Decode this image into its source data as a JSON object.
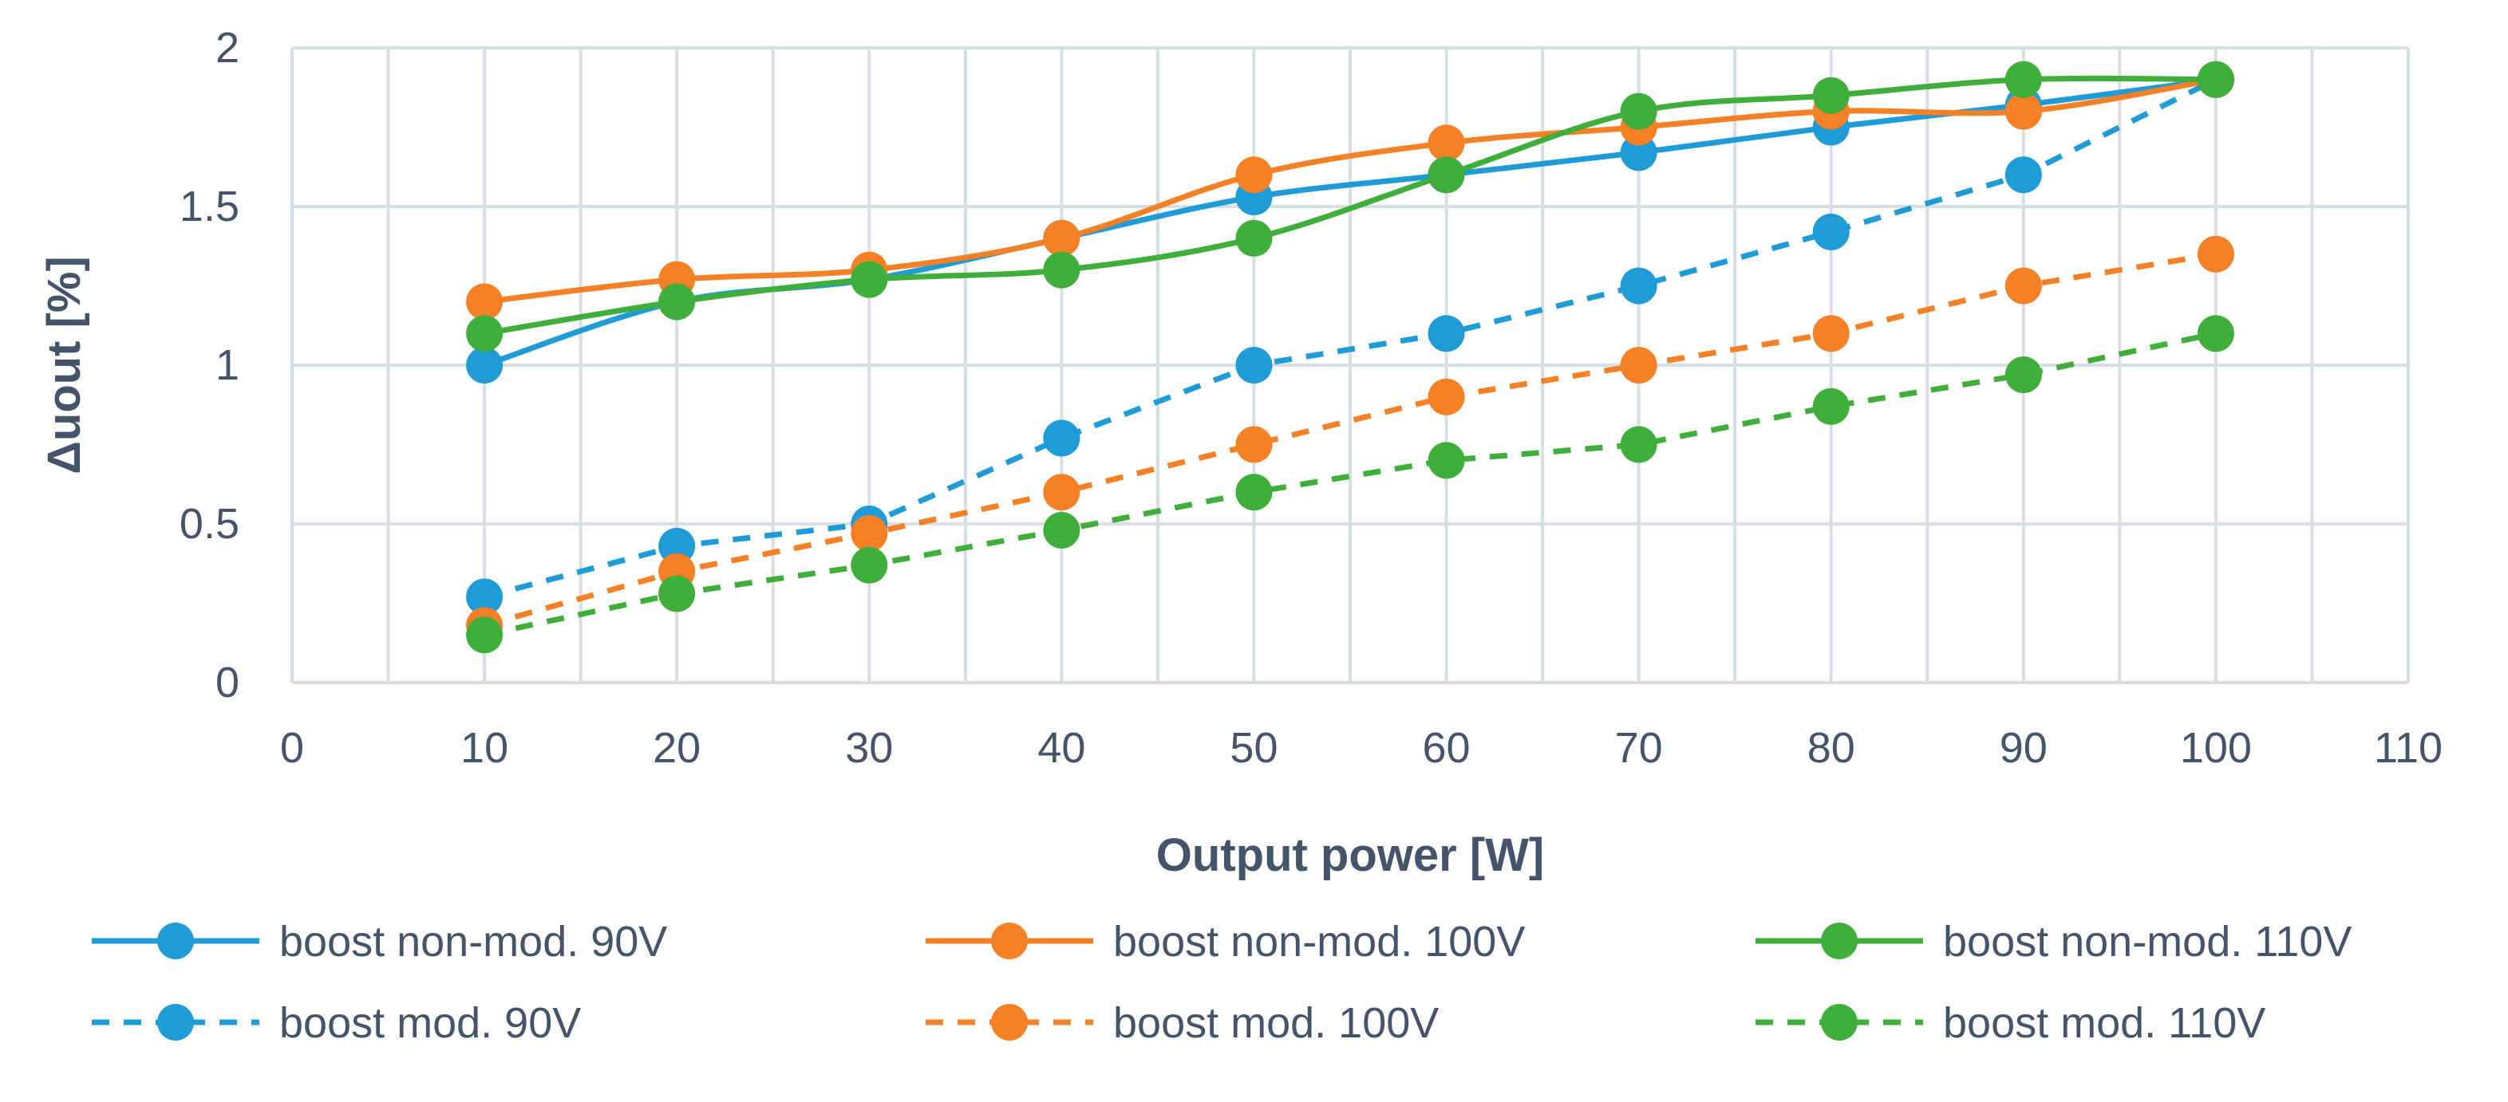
{
  "chart_data": {
    "type": "line",
    "title": "",
    "xlabel": "Output power [W]",
    "ylabel": "Δuout [%]",
    "xlim": [
      0,
      110
    ],
    "ylim": [
      0,
      2
    ],
    "xticks": [
      0,
      10,
      20,
      30,
      40,
      50,
      60,
      70,
      80,
      90,
      100,
      110
    ],
    "yticks": [
      0,
      0.5,
      1,
      1.5,
      2
    ],
    "ytick_labels": [
      "0",
      "0.5",
      "1",
      "1.5",
      "2"
    ],
    "grid": true,
    "legend_position": "bottom",
    "x": [
      10,
      20,
      30,
      40,
      50,
      60,
      70,
      80,
      90,
      100
    ],
    "series": [
      {
        "name": "boost non-mod. 90V",
        "color": "#1f9bd7",
        "style": "solid",
        "smooth": true,
        "values": [
          1.0,
          1.2,
          1.27,
          1.4,
          1.53,
          1.6,
          1.67,
          1.75,
          1.82,
          1.9
        ]
      },
      {
        "name": "boost non-mod. 100V",
        "color": "#f58025",
        "style": "solid",
        "smooth": true,
        "values": [
          1.2,
          1.27,
          1.3,
          1.4,
          1.6,
          1.7,
          1.75,
          1.8,
          1.8,
          1.9
        ]
      },
      {
        "name": "boost non-mod. 110V",
        "color": "#3fae3a",
        "style": "solid",
        "smooth": true,
        "values": [
          1.1,
          1.2,
          1.27,
          1.3,
          1.4,
          1.6,
          1.8,
          1.85,
          1.9,
          1.9
        ]
      },
      {
        "name": "boost mod. 90V",
        "color": "#1f9bd7",
        "style": "dashed",
        "smooth": false,
        "values": [
          0.27,
          0.43,
          0.5,
          0.77,
          1.0,
          1.1,
          1.25,
          1.42,
          1.6,
          1.9
        ]
      },
      {
        "name": "boost mod. 100V",
        "color": "#f58025",
        "style": "dashed",
        "smooth": false,
        "values": [
          0.18,
          0.35,
          0.47,
          0.6,
          0.75,
          0.9,
          1.0,
          1.1,
          1.25,
          1.35
        ]
      },
      {
        "name": "boost mod. 110V",
        "color": "#3fae3a",
        "style": "dashed",
        "smooth": false,
        "values": [
          0.15,
          0.28,
          0.37,
          0.48,
          0.6,
          0.7,
          0.75,
          0.87,
          0.97,
          1.1
        ]
      }
    ]
  }
}
